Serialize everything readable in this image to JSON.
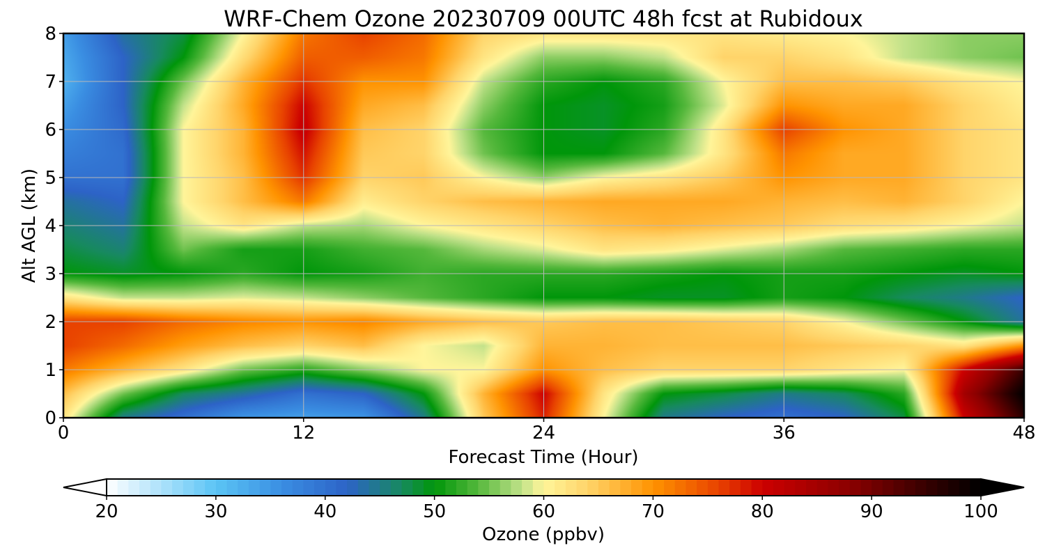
{
  "chart_data": {
    "type": "heatmap",
    "title": "WRF-Chem Ozone  20230709 00UTC 48h fcst at Rubidoux",
    "xlabel": "Forecast Time (Hour)",
    "ylabel": "Alt AGL (km)",
    "xlim": [
      0,
      48
    ],
    "ylim": [
      0,
      8
    ],
    "xticks": [
      0,
      12,
      24,
      36,
      48
    ],
    "yticks": [
      0,
      1,
      2,
      3,
      4,
      5,
      6,
      7,
      8
    ],
    "grid": true,
    "x": [
      0,
      3,
      6,
      9,
      12,
      15,
      18,
      21,
      24,
      27,
      30,
      33,
      36,
      39,
      42,
      45,
      48
    ],
    "y": [
      0,
      0.5,
      1,
      1.5,
      2,
      2.5,
      3,
      3.5,
      4,
      4.5,
      5,
      5.5,
      6,
      6.5,
      7,
      7.5,
      8
    ],
    "z": [
      [
        62,
        45,
        40,
        35,
        34,
        35,
        45,
        65,
        78,
        60,
        45,
        42,
        40,
        42,
        48,
        80,
        96
      ],
      [
        66,
        55,
        47,
        44,
        40,
        42,
        50,
        67,
        80,
        62,
        50,
        48,
        45,
        47,
        52,
        85,
        100
      ],
      [
        72,
        67,
        62,
        55,
        52,
        56,
        60,
        60,
        70,
        66,
        64,
        64,
        64,
        62,
        60,
        80,
        95
      ],
      [
        76,
        73,
        69,
        66,
        64,
        66,
        60,
        58,
        67,
        67,
        66,
        66,
        66,
        65,
        64,
        62,
        70
      ],
      [
        76,
        76,
        73,
        71,
        70,
        71,
        68,
        66,
        65,
        66,
        66,
        65,
        64,
        60,
        55,
        50,
        44
      ],
      [
        62,
        58,
        58,
        59,
        58,
        56,
        54,
        52,
        50,
        50,
        49,
        49,
        51,
        50,
        47,
        45,
        42
      ],
      [
        50,
        49,
        50,
        52,
        50,
        51,
        53,
        52,
        52,
        52,
        51,
        50,
        51,
        51,
        50,
        49,
        50
      ],
      [
        48,
        46,
        55,
        51,
        51,
        53,
        54,
        57,
        59,
        62,
        61,
        59,
        57,
        54,
        53,
        52,
        52
      ],
      [
        46,
        44,
        58,
        62,
        58,
        57,
        60,
        62,
        64,
        66,
        67,
        66,
        65,
        63,
        62,
        60,
        58
      ],
      [
        44,
        42,
        60,
        66,
        72,
        61,
        64,
        66,
        67,
        68,
        68,
        68,
        67,
        66,
        67,
        64,
        60
      ],
      [
        40,
        40,
        60,
        66,
        77,
        64,
        65,
        60,
        56,
        60,
        62,
        65,
        70,
        68,
        68,
        64,
        62
      ],
      [
        38,
        40,
        60,
        67,
        79,
        65,
        64,
        55,
        50,
        50,
        54,
        62,
        72,
        68,
        68,
        64,
        62
      ],
      [
        36,
        41,
        60,
        67,
        81,
        66,
        64,
        54,
        50,
        49,
        52,
        62,
        76,
        70,
        68,
        64,
        62
      ],
      [
        34,
        42,
        58,
        68,
        80,
        68,
        66,
        56,
        50,
        49,
        51,
        59,
        70,
        68,
        68,
        64,
        61
      ],
      [
        32,
        42,
        55,
        67,
        77,
        70,
        70,
        58,
        52,
        50,
        52,
        60,
        66,
        66,
        65,
        62,
        60
      ],
      [
        33,
        42,
        50,
        63,
        74,
        74,
        72,
        62,
        56,
        56,
        58,
        64,
        64,
        62,
        58,
        56,
        55
      ],
      [
        34,
        44,
        48,
        60,
        72,
        76,
        73,
        64,
        62,
        62,
        62,
        62,
        61,
        60,
        58,
        56,
        56
      ]
    ],
    "colorbar": {
      "label": "Ozone  (ppbv)",
      "min": 20,
      "max": 100,
      "ticks": [
        20,
        30,
        40,
        50,
        60,
        70,
        80,
        90,
        100
      ],
      "extend": "both",
      "stops": [
        [
          20,
          "#ffffff"
        ],
        [
          30,
          "#5bc4f5"
        ],
        [
          36,
          "#3a8ee2"
        ],
        [
          42,
          "#2d63c7"
        ],
        [
          47,
          "#178a5e"
        ],
        [
          50,
          "#00960a"
        ],
        [
          54,
          "#55b83c"
        ],
        [
          58,
          "#c2e28a"
        ],
        [
          60,
          "#fff59a"
        ],
        [
          64,
          "#ffd46a"
        ],
        [
          70,
          "#ff9300"
        ],
        [
          76,
          "#e84200"
        ],
        [
          80,
          "#cc0000"
        ],
        [
          88,
          "#8b0000"
        ],
        [
          96,
          "#2a0000"
        ],
        [
          100,
          "#000000"
        ]
      ]
    }
  }
}
